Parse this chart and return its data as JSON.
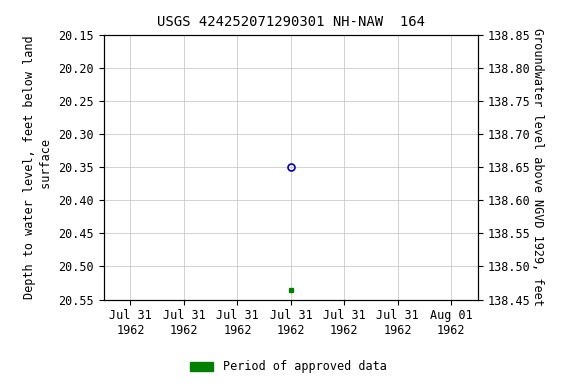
{
  "title": "USGS 424252071290301 NH-NAW  164",
  "ylabel_left": "Depth to water level, feet below land\n surface",
  "ylabel_right": "Groundwater level above NGVD 1929, feet",
  "ylim_left": [
    20.55,
    20.15
  ],
  "ylim_right": [
    138.45,
    138.85
  ],
  "yticks_left": [
    20.15,
    20.2,
    20.25,
    20.3,
    20.35,
    20.4,
    20.45,
    20.5,
    20.55
  ],
  "yticks_right": [
    138.85,
    138.8,
    138.75,
    138.7,
    138.65,
    138.6,
    138.55,
    138.5,
    138.45
  ],
  "xlim_start_days": -0.5,
  "xlim_end_days": 6.5,
  "point_open_x_day": 3.0,
  "point_open_y": 20.35,
  "point_open_color": "#0000cc",
  "point_filled_x_day": 3.0,
  "point_filled_y": 20.535,
  "point_filled_color": "#008000",
  "legend_label": "Period of approved data",
  "legend_color": "#008000",
  "background_color": "#ffffff",
  "grid_color": "#c0c0c0",
  "title_fontsize": 10,
  "axis_fontsize": 8.5,
  "tick_fontsize": 8.5,
  "n_xticks": 7,
  "xtick_top_labels": [
    "Jul 31",
    "Jul 31",
    "Jul 31",
    "Jul 31",
    "Jul 31",
    "Jul 31",
    "Aug 01"
  ],
  "xtick_bot_labels": [
    "1962",
    "1962",
    "1962",
    "1962",
    "1962",
    "1962",
    "1962"
  ]
}
